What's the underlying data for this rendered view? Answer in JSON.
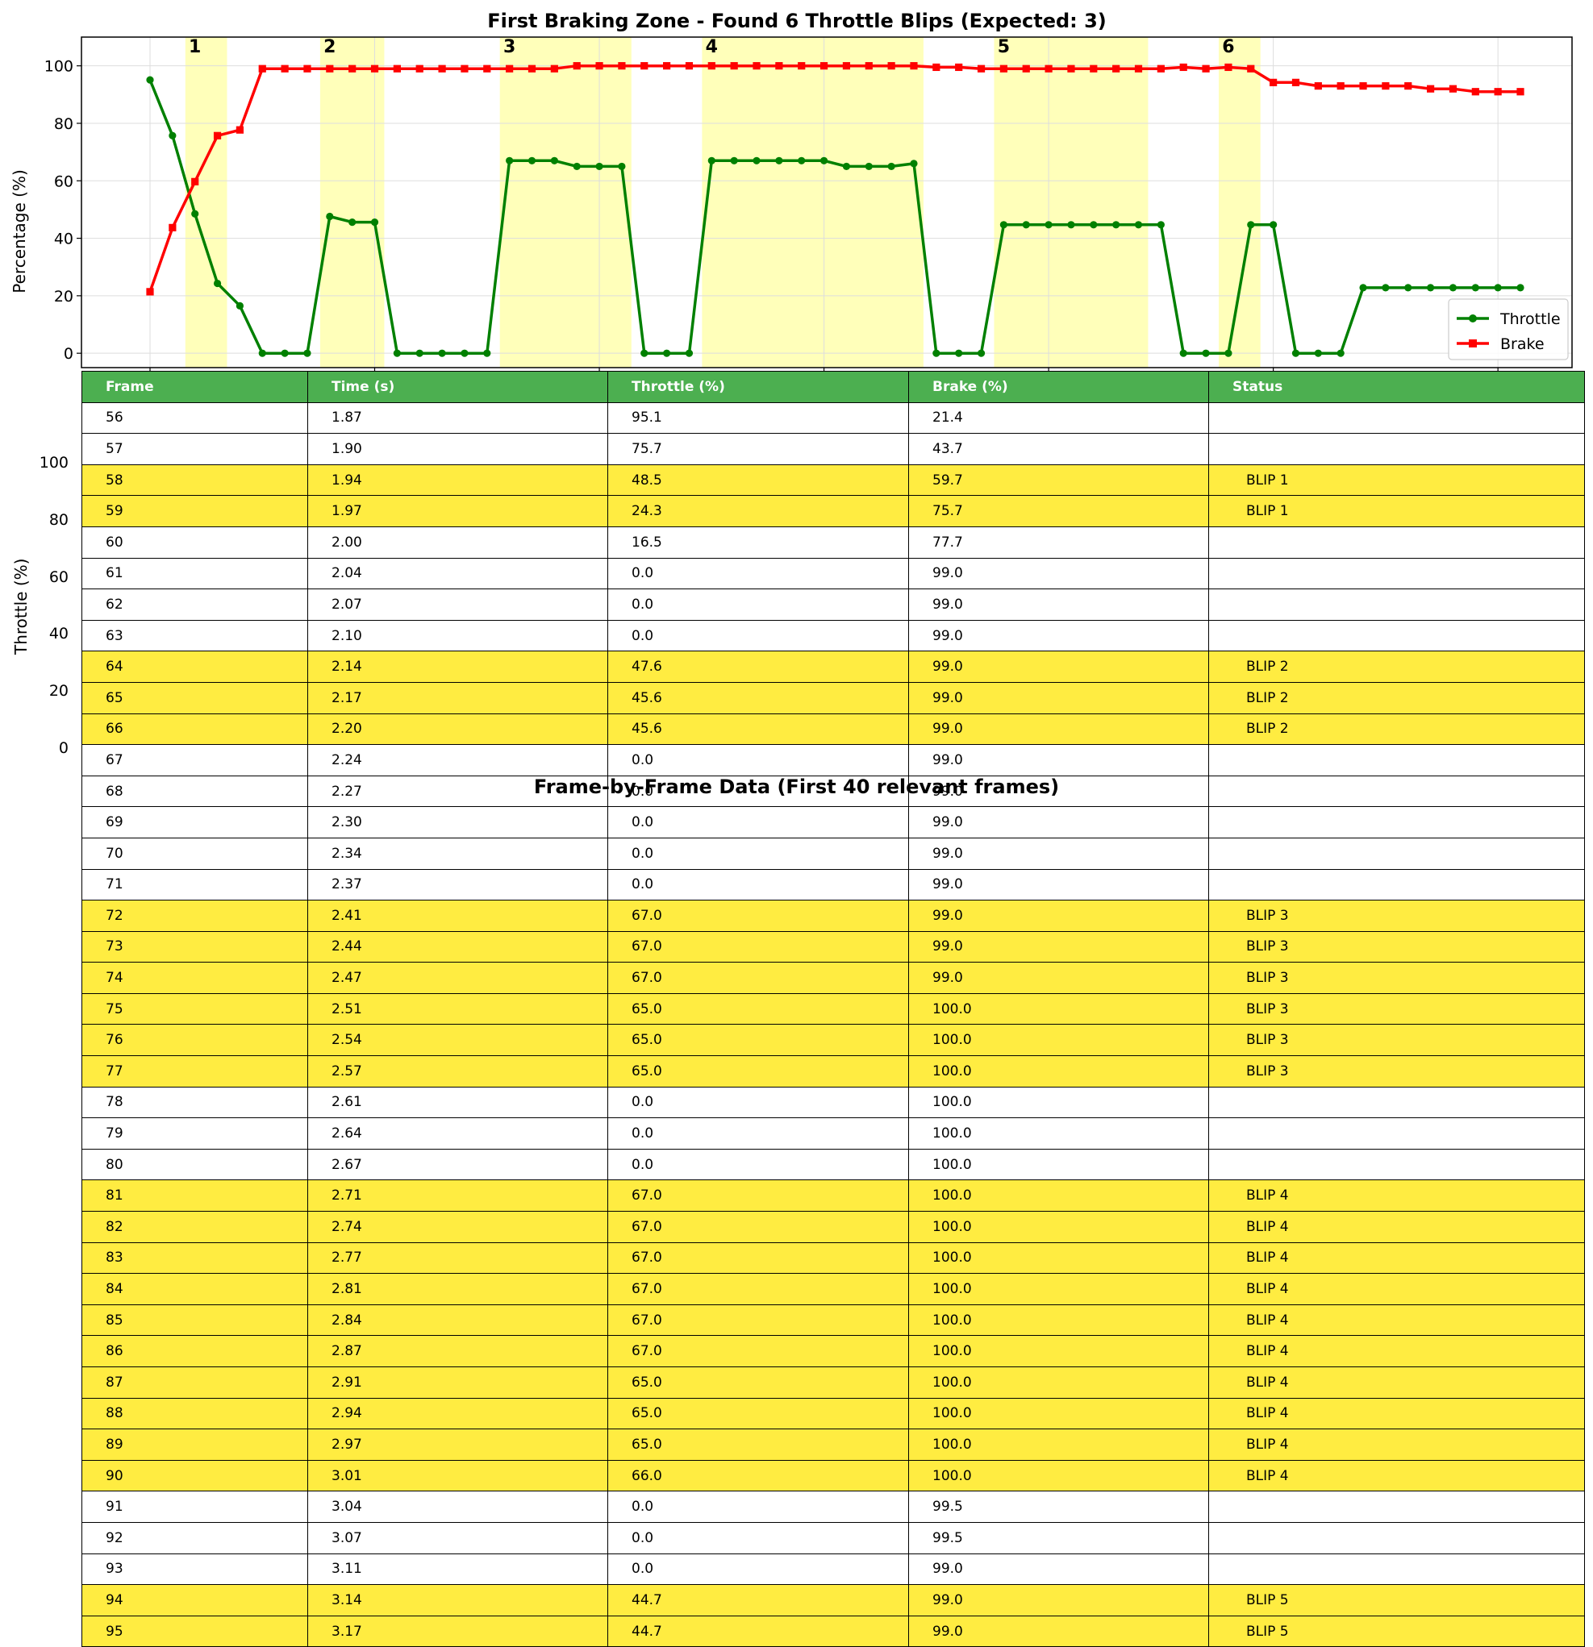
{
  "chart_data": [
    {
      "type": "line",
      "title": "First Braking Zone - Found 6 Throttle Blips (Expected: 3)",
      "ylabel": "Percentage (%)",
      "ylim": [
        -5,
        110
      ],
      "yticks": [
        0,
        20,
        40,
        60,
        80,
        100
      ],
      "grid": true,
      "legend_position": "lower right",
      "series": [
        {
          "name": "Throttle",
          "color": "#008000",
          "marker": "circle",
          "values": [
            95.1,
            75.7,
            48.5,
            24.3,
            16.5,
            0.0,
            0.0,
            0.0,
            47.6,
            45.6,
            45.6,
            0.0,
            0.0,
            0.0,
            0.0,
            0.0,
            67.0,
            67.0,
            67.0,
            65.0,
            65.0,
            65.0,
            0.0,
            0.0,
            0.0,
            67.0,
            67.0,
            67.0,
            67.0,
            67.0,
            67.0,
            65.0,
            65.0,
            65.0,
            66.0,
            0.0,
            0.0,
            0.0,
            44.7,
            44.7,
            44.7,
            44.7,
            44.7,
            44.7,
            44.7,
            44.7,
            0.0,
            0.0,
            0.0,
            44.7,
            44.7,
            0.0,
            0.0,
            0.0,
            22.8,
            22.8,
            22.8,
            22.8,
            22.8,
            22.8,
            22.8,
            22.8
          ]
        },
        {
          "name": "Brake",
          "color": "#ff0000",
          "marker": "square",
          "values": [
            21.4,
            43.7,
            59.7,
            75.7,
            77.7,
            99.0,
            99.0,
            99.0,
            99.0,
            99.0,
            99.0,
            99.0,
            99.0,
            99.0,
            99.0,
            99.0,
            99.0,
            99.0,
            99.0,
            100.0,
            100.0,
            100.0,
            100.0,
            100.0,
            100.0,
            100.0,
            100.0,
            100.0,
            100.0,
            100.0,
            100.0,
            100.0,
            100.0,
            100.0,
            100.0,
            99.5,
            99.5,
            99.0,
            99.0,
            99.0,
            99.0,
            99.0,
            99.0,
            99.0,
            99.0,
            99.0,
            99.5,
            99.0,
            99.5,
            99.0,
            94.2,
            94.2,
            93.0,
            93.0,
            93.0,
            93.0,
            93.0,
            92.0,
            92.0,
            91.0,
            91.0,
            91.0
          ]
        }
      ],
      "blip_regions": [
        {
          "label": "1",
          "start_index": 2,
          "end_index": 3
        },
        {
          "label": "2",
          "start_index": 8,
          "end_index": 10
        },
        {
          "label": "3",
          "start_index": 16,
          "end_index": 21
        },
        {
          "label": "4",
          "start_index": 25,
          "end_index": 34
        },
        {
          "label": "5",
          "start_index": 38,
          "end_index": 44
        },
        {
          "label": "6",
          "start_index": 48,
          "end_index": 49
        }
      ]
    },
    {
      "type": "table",
      "title": "Frame-by-Frame Data (First 40 relevant frames)",
      "ylabel": "Throttle (%)",
      "yticks": [
        0,
        20,
        40,
        60,
        80,
        100
      ],
      "columns": [
        "Frame",
        "Time (s)",
        "Throttle (%)",
        "Brake (%)",
        "Status"
      ],
      "rows": [
        [
          "56",
          "1.87",
          "95.1",
          "21.4",
          ""
        ],
        [
          "57",
          "1.90",
          "75.7",
          "43.7",
          ""
        ],
        [
          "58",
          "1.94",
          "48.5",
          "59.7",
          "BLIP 1"
        ],
        [
          "59",
          "1.97",
          "24.3",
          "75.7",
          "BLIP 1"
        ],
        [
          "60",
          "2.00",
          "16.5",
          "77.7",
          ""
        ],
        [
          "61",
          "2.04",
          "0.0",
          "99.0",
          ""
        ],
        [
          "62",
          "2.07",
          "0.0",
          "99.0",
          ""
        ],
        [
          "63",
          "2.10",
          "0.0",
          "99.0",
          ""
        ],
        [
          "64",
          "2.14",
          "47.6",
          "99.0",
          "BLIP 2"
        ],
        [
          "65",
          "2.17",
          "45.6",
          "99.0",
          "BLIP 2"
        ],
        [
          "66",
          "2.20",
          "45.6",
          "99.0",
          "BLIP 2"
        ],
        [
          "67",
          "2.24",
          "0.0",
          "99.0",
          ""
        ],
        [
          "68",
          "2.27",
          "0.0",
          "99.0",
          ""
        ],
        [
          "69",
          "2.30",
          "0.0",
          "99.0",
          ""
        ],
        [
          "70",
          "2.34",
          "0.0",
          "99.0",
          ""
        ],
        [
          "71",
          "2.37",
          "0.0",
          "99.0",
          ""
        ],
        [
          "72",
          "2.41",
          "67.0",
          "99.0",
          "BLIP 3"
        ],
        [
          "73",
          "2.44",
          "67.0",
          "99.0",
          "BLIP 3"
        ],
        [
          "74",
          "2.47",
          "67.0",
          "99.0",
          "BLIP 3"
        ],
        [
          "75",
          "2.51",
          "65.0",
          "100.0",
          "BLIP 3"
        ],
        [
          "76",
          "2.54",
          "65.0",
          "100.0",
          "BLIP 3"
        ],
        [
          "77",
          "2.57",
          "65.0",
          "100.0",
          "BLIP 3"
        ],
        [
          "78",
          "2.61",
          "0.0",
          "100.0",
          ""
        ],
        [
          "79",
          "2.64",
          "0.0",
          "100.0",
          ""
        ],
        [
          "80",
          "2.67",
          "0.0",
          "100.0",
          ""
        ],
        [
          "81",
          "2.71",
          "67.0",
          "100.0",
          "BLIP 4"
        ],
        [
          "82",
          "2.74",
          "67.0",
          "100.0",
          "BLIP 4"
        ],
        [
          "83",
          "2.77",
          "67.0",
          "100.0",
          "BLIP 4"
        ],
        [
          "84",
          "2.81",
          "67.0",
          "100.0",
          "BLIP 4"
        ],
        [
          "85",
          "2.84",
          "67.0",
          "100.0",
          "BLIP 4"
        ],
        [
          "86",
          "2.87",
          "67.0",
          "100.0",
          "BLIP 4"
        ],
        [
          "87",
          "2.91",
          "65.0",
          "100.0",
          "BLIP 4"
        ],
        [
          "88",
          "2.94",
          "65.0",
          "100.0",
          "BLIP 4"
        ],
        [
          "89",
          "2.97",
          "65.0",
          "100.0",
          "BLIP 4"
        ],
        [
          "90",
          "3.01",
          "66.0",
          "100.0",
          "BLIP 4"
        ],
        [
          "91",
          "3.04",
          "0.0",
          "99.5",
          ""
        ],
        [
          "92",
          "3.07",
          "0.0",
          "99.5",
          ""
        ],
        [
          "93",
          "3.11",
          "0.0",
          "99.0",
          ""
        ],
        [
          "94",
          "3.14",
          "44.7",
          "99.0",
          "BLIP 5"
        ],
        [
          "95",
          "3.17",
          "44.7",
          "99.0",
          "BLIP 5"
        ]
      ]
    }
  ]
}
